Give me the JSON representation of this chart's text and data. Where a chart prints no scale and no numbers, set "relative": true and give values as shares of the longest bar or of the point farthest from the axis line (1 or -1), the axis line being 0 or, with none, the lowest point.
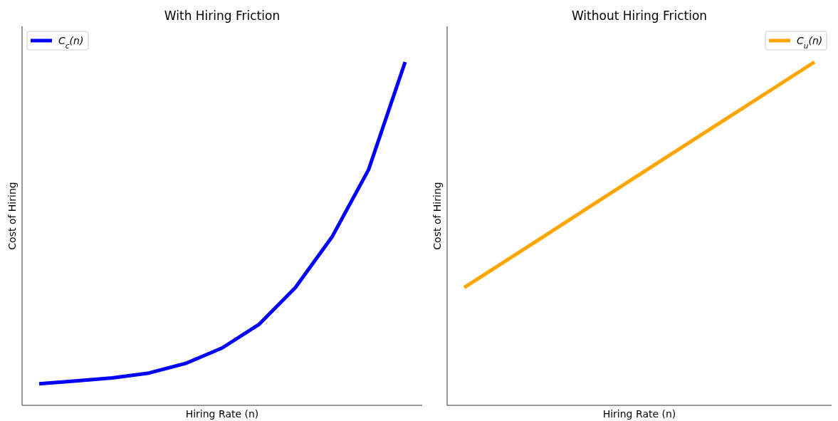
{
  "chart_data": [
    {
      "type": "line",
      "title": "With Hiring Friction",
      "xlabel": "Hiring Rate (n)",
      "ylabel": "Cost of Hiring",
      "relative": true,
      "tick_labels": false,
      "legend": "top left",
      "categories": [
        null,
        null,
        null,
        null,
        null,
        null,
        null,
        null,
        null,
        null,
        null
      ],
      "series": [
        {
          "name": "C$_{c}$(n)",
          "color": "#0000ff",
          "values": [
            0.063,
            0.071,
            0.08,
            0.094,
            0.122,
            0.167,
            0.235,
            0.343,
            0.49,
            0.686,
            1
          ]
        }
      ]
    },
    {
      "type": "line",
      "title": "Without Hiring Friction",
      "xlabel": "Hiring Rate (n)",
      "ylabel": "Cost of Hiring",
      "relative": true,
      "tick_labels": false,
      "legend": "top right",
      "categories": [
        null,
        null,
        null,
        null,
        null
      ],
      "series": [
        {
          "name": "C$_{u}$(n)",
          "color": "#ffa500",
          "values": [
            0.343,
            0.507,
            0.672,
            0.836,
            1
          ]
        }
      ]
    }
  ]
}
